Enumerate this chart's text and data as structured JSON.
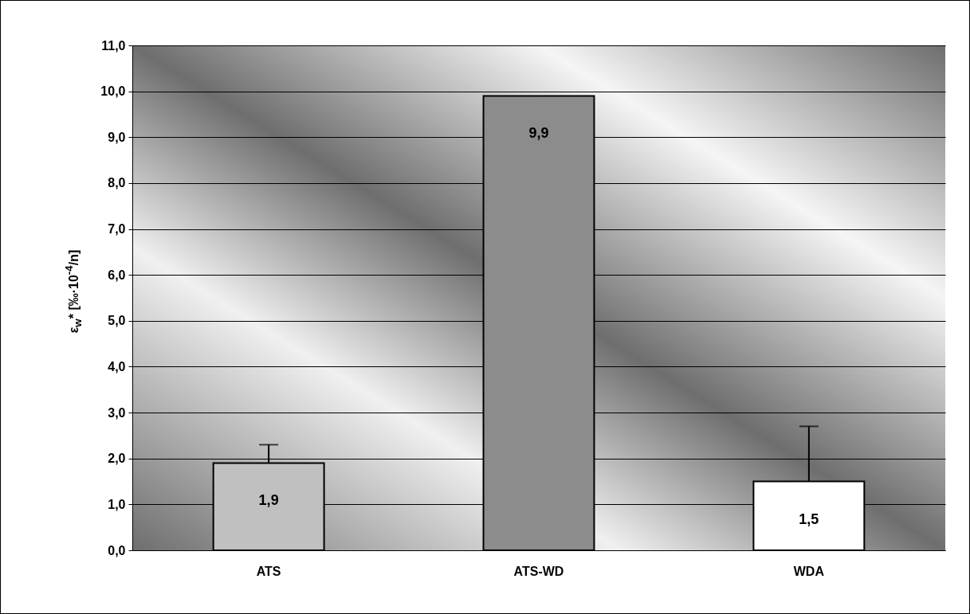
{
  "chart_data": {
    "type": "bar",
    "ylabel": "ε$_{w}$* [‰·10$^{-4}$/n]",
    "categories": [
      "ATS",
      "ATS-WD",
      "WDA"
    ],
    "values": [
      1.9,
      9.9,
      1.5
    ],
    "colors": [
      "#c0c0c0",
      "#8c8c8c",
      "#ffffff"
    ],
    "errors": [
      [
        1.9,
        2.3
      ],
      null,
      [
        1.5,
        2.7
      ]
    ],
    "value_labels": [
      "1,9",
      "9,9",
      "1,5"
    ],
    "ylim": [
      0,
      11
    ],
    "yticks": [
      {
        "value": 0,
        "label": "0,0"
      },
      {
        "value": 1,
        "label": "1,0"
      },
      {
        "value": 2,
        "label": "2,0"
      },
      {
        "value": 3,
        "label": "3,0"
      },
      {
        "value": 4,
        "label": "4,0"
      },
      {
        "value": 5,
        "label": "5,0"
      },
      {
        "value": 6,
        "label": "6,0"
      },
      {
        "value": 7,
        "label": "7,0"
      },
      {
        "value": 8,
        "label": "8,0"
      },
      {
        "value": 9,
        "label": "9,0"
      },
      {
        "value": 10,
        "label": "10,0"
      },
      {
        "value": 11,
        "label": "11,0"
      }
    ],
    "grid": true
  }
}
